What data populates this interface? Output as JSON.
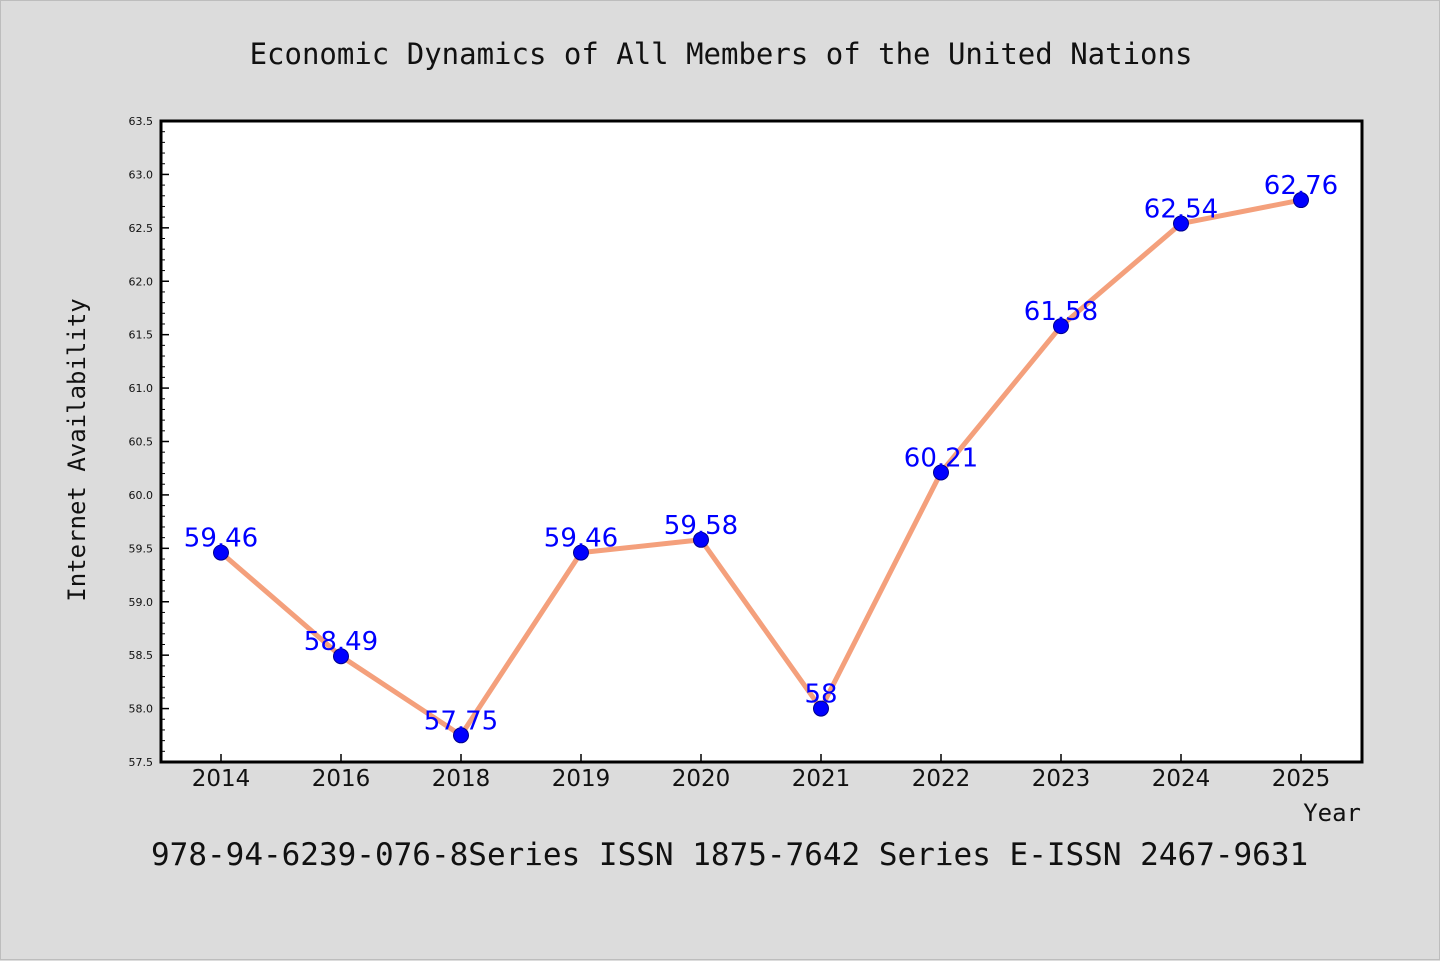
{
  "colors": {
    "background": "#dcdcdc",
    "plot_background": "#ffffff",
    "line": "#f4a07c",
    "marker": "#0000ff",
    "data_label": "#0000ff"
  },
  "footer": {
    "text": "978-94-6239-076-8Series ISSN 1875-7642 Series E-ISSN 2467-9631"
  },
  "chart_data": {
    "type": "line",
    "title": "Economic Dynamics of All Members of the United Nations",
    "xlabel": "Year",
    "ylabel": "Internet Availability",
    "categories": [
      "2014",
      "2016",
      "2018",
      "2019",
      "2020",
      "2021",
      "2022",
      "2023",
      "2024",
      "2025"
    ],
    "series": [
      {
        "values": [
          59.46,
          58.49,
          57.75,
          59.46,
          59.58,
          58,
          60.21,
          61.58,
          62.54,
          62.76
        ],
        "labels": [
          "59.46",
          "58.49",
          "57.75",
          "59.46",
          "59.58",
          "58",
          "60.21",
          "61.58",
          "62.54",
          "62.76"
        ]
      }
    ],
    "ylim": [
      57.5,
      63.5
    ],
    "yticks": [
      "57.5",
      "58.0",
      "58.5",
      "59.0",
      "59.5",
      "60.0",
      "60.5",
      "61.0",
      "61.5",
      "62.0",
      "62.5",
      "63.0",
      "63.5"
    ],
    "grid": false,
    "legend": "none",
    "marker": "circle"
  }
}
